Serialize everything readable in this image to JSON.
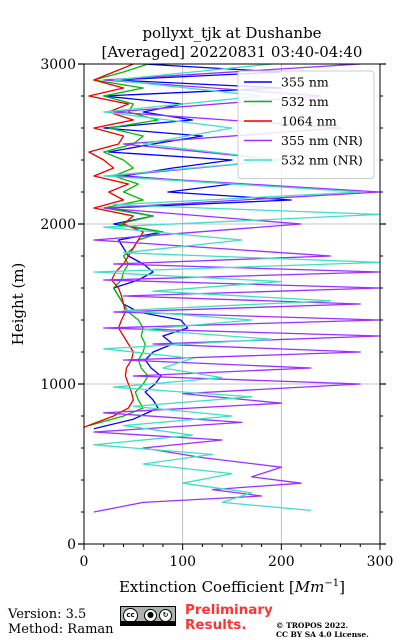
{
  "title_line1": "pollyxt_tjk at Dushanbe",
  "title_line2": "[Averaged] 20220831 03:40-04:40",
  "footer": {
    "version": "Version: 3.5",
    "method": "Method: Raman",
    "preliminary": "Preliminary Results.",
    "copyright_line1": "© TROPOS 2022.",
    "copyright_line2": "CC BY SA 4.0 License.",
    "cc_badge_icon": "cc-by-sa-license-icon",
    "preliminary_color": "#ff3333"
  },
  "chart_data": {
    "type": "line",
    "orientation": "vertical-profile",
    "xlabel": "Extinction Coefficient [Mm⁻¹]",
    "ylabel": "Height (m)",
    "xlim": [
      0,
      300
    ],
    "ylim": [
      0,
      3000
    ],
    "x_ticks": [
      0,
      100,
      200,
      300
    ],
    "y_ticks": [
      0,
      1000,
      2000,
      3000
    ],
    "grid": true,
    "legend_position": "top-right",
    "series": [
      {
        "name": "355 nm",
        "color": "#0000ff",
        "height": [
          720,
          780,
          850,
          900,
          950,
          1000,
          1050,
          1100,
          1150,
          1200,
          1250,
          1300,
          1350,
          1400,
          1450,
          1500,
          1550,
          1600,
          1650,
          1700,
          1750,
          1800,
          1850,
          1900,
          1950,
          2000,
          2050,
          2100,
          2150,
          2200,
          2250,
          2300,
          2350,
          2400,
          2450,
          2500,
          2550,
          2600,
          2650,
          2700,
          2750,
          2800,
          2850,
          2900,
          2950,
          3000
        ],
        "extinction": [
          10,
          50,
          75,
          70,
          62,
          72,
          78,
          68,
          62,
          70,
          90,
          80,
          105,
          98,
          55,
          40,
          35,
          30,
          55,
          70,
          60,
          45,
          40,
          35,
          80,
          30,
          70,
          25,
          210,
          85,
          150,
          40,
          90,
          150,
          25,
          70,
          120,
          20,
          110,
          60,
          100,
          20,
          200,
          30,
          200,
          60
        ]
      },
      {
        "name": "532 nm",
        "color": "#00bb00",
        "height": [
          740,
          800,
          850,
          900,
          950,
          1000,
          1050,
          1100,
          1150,
          1200,
          1250,
          1300,
          1350,
          1400,
          1450,
          1500,
          1550,
          1600,
          1650,
          1700,
          1750,
          1800,
          1850,
          1900,
          1950,
          2000,
          2050,
          2100,
          2150,
          2200,
          2250,
          2300,
          2350,
          2400,
          2450,
          2500,
          2550,
          2600,
          2650,
          2700,
          2750,
          2800,
          2850,
          2900,
          2950,
          3000
        ],
        "extinction": [
          5,
          40,
          60,
          55,
          52,
          60,
          65,
          58,
          55,
          60,
          62,
          58,
          60,
          55,
          45,
          40,
          35,
          30,
          38,
          40,
          45,
          40,
          50,
          55,
          80,
          35,
          70,
          20,
          60,
          40,
          55,
          30,
          50,
          40,
          20,
          50,
          60,
          25,
          75,
          45,
          50,
          20,
          60,
          10,
          40,
          65
        ]
      },
      {
        "name": "1064 nm",
        "color": "#ee0000",
        "height": [
          730,
          800,
          850,
          900,
          950,
          1000,
          1050,
          1100,
          1150,
          1200,
          1250,
          1300,
          1350,
          1400,
          1450,
          1500,
          1550,
          1600,
          1650,
          1700,
          1750,
          1800,
          1850,
          1900,
          1950,
          2000,
          2050,
          2100,
          2150,
          2200,
          2250,
          2300,
          2350,
          2400,
          2450,
          2500,
          2550,
          2600,
          2650,
          2700,
          2750,
          2800,
          2850,
          2900,
          2950,
          3000
        ],
        "extinction": [
          0,
          30,
          45,
          50,
          48,
          45,
          42,
          43,
          48,
          50,
          45,
          40,
          35,
          38,
          42,
          40,
          38,
          35,
          28,
          32,
          40,
          45,
          50,
          55,
          60,
          40,
          50,
          10,
          40,
          25,
          45,
          10,
          30,
          20,
          5,
          35,
          40,
          10,
          50,
          25,
          45,
          5,
          40,
          10,
          30,
          50
        ]
      },
      {
        "name": "355 nm (NR)",
        "color": "#9b30ff",
        "height": [
          200,
          260,
          300,
          340,
          380,
          420,
          480,
          540,
          600,
          650,
          700,
          760,
          820,
          880,
          940,
          1000,
          1050,
          1100,
          1150,
          1200,
          1250,
          1300,
          1350,
          1400,
          1450,
          1500,
          1550,
          1600,
          1650,
          1700,
          1750,
          1800,
          1900,
          2000,
          2100,
          2200,
          2300,
          2400,
          2500,
          2600,
          2700,
          2800,
          2900,
          3000
        ],
        "extinction": [
          10,
          60,
          180,
          130,
          220,
          170,
          200,
          120,
          60,
          140,
          10,
          160,
          20,
          200,
          100,
          280,
          50,
          230,
          40,
          280,
          70,
          300,
          20,
          300,
          30,
          280,
          40,
          300,
          20,
          300,
          30,
          250,
          10,
          220,
          20,
          300,
          30,
          200,
          40,
          260,
          30,
          240,
          20,
          280
        ]
      },
      {
        "name": "532 nm (NR)",
        "color": "#40e0c0",
        "height": [
          210,
          260,
          320,
          380,
          440,
          500,
          560,
          620,
          680,
          740,
          800,
          860,
          920,
          980,
          1040,
          1100,
          1160,
          1220,
          1280,
          1340,
          1400,
          1460,
          1520,
          1580,
          1640,
          1700,
          1760,
          1820,
          1900,
          1980,
          2060,
          2120,
          2200,
          2300,
          2400,
          2500,
          2600,
          2700,
          2800,
          2900,
          3000
        ],
        "extinction": [
          230,
          140,
          170,
          100,
          150,
          60,
          130,
          10,
          110,
          40,
          150,
          50,
          170,
          30,
          140,
          80,
          110,
          20,
          190,
          60,
          170,
          40,
          250,
          70,
          200,
          10,
          300,
          40,
          160,
          20,
          300,
          30,
          280,
          20,
          200,
          60,
          150,
          20,
          180,
          30,
          190
        ]
      }
    ]
  }
}
